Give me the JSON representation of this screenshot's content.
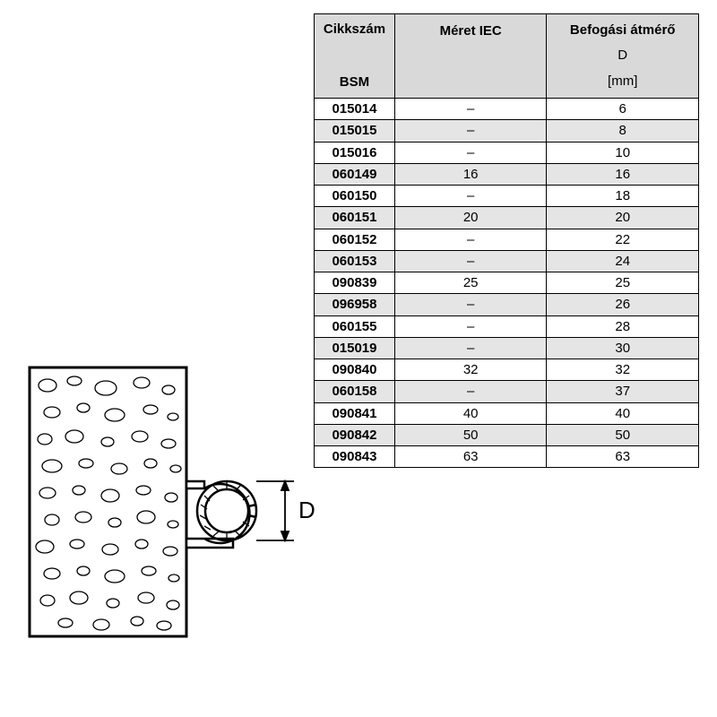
{
  "table": {
    "header": {
      "col1_line1": "Cikkszám",
      "col1_line2": "BSM",
      "col2": "Méret IEC",
      "col3_line1": "Befogási átmérő",
      "col3_line2": "D",
      "col3_line3": "[mm]"
    },
    "columns": {
      "col1_width": 90,
      "col2_width": 170,
      "col3_width": 170
    },
    "header_bg": "#d9d9d9",
    "row_shade_bg": "#e5e5e5",
    "border_color": "#000000",
    "font_size": 15,
    "rows": [
      {
        "cikk": "015014",
        "iec": "–",
        "d": "6",
        "shaded": false
      },
      {
        "cikk": "015015",
        "iec": "–",
        "d": "8",
        "shaded": true
      },
      {
        "cikk": "015016",
        "iec": "–",
        "d": "10",
        "shaded": false
      },
      {
        "cikk": "060149",
        "iec": "16",
        "d": "16",
        "shaded": true
      },
      {
        "cikk": "060150",
        "iec": "–",
        "d": "18",
        "shaded": false
      },
      {
        "cikk": "060151",
        "iec": "20",
        "d": "20",
        "shaded": true
      },
      {
        "cikk": "060152",
        "iec": "–",
        "d": "22",
        "shaded": false
      },
      {
        "cikk": "060153",
        "iec": "–",
        "d": "24",
        "shaded": true
      },
      {
        "cikk": "090839",
        "iec": "25",
        "d": "25",
        "shaded": false
      },
      {
        "cikk": "096958",
        "iec": "–",
        "d": "26",
        "shaded": true
      },
      {
        "cikk": "060155",
        "iec": "–",
        "d": "28",
        "shaded": false
      },
      {
        "cikk": "015019",
        "iec": "–",
        "d": "30",
        "shaded": true
      },
      {
        "cikk": "090840",
        "iec": "32",
        "d": "32",
        "shaded": false
      },
      {
        "cikk": "060158",
        "iec": "–",
        "d": "37",
        "shaded": true
      },
      {
        "cikk": "090841",
        "iec": "40",
        "d": "40",
        "shaded": false
      },
      {
        "cikk": "090842",
        "iec": "50",
        "d": "50",
        "shaded": true
      },
      {
        "cikk": "090843",
        "iec": "63",
        "d": "63",
        "shaded": false
      }
    ]
  },
  "diagram": {
    "label": "D",
    "colors": {
      "stroke": "#000000",
      "fill_bg": "#ffffff"
    },
    "stroke_width": 2
  }
}
